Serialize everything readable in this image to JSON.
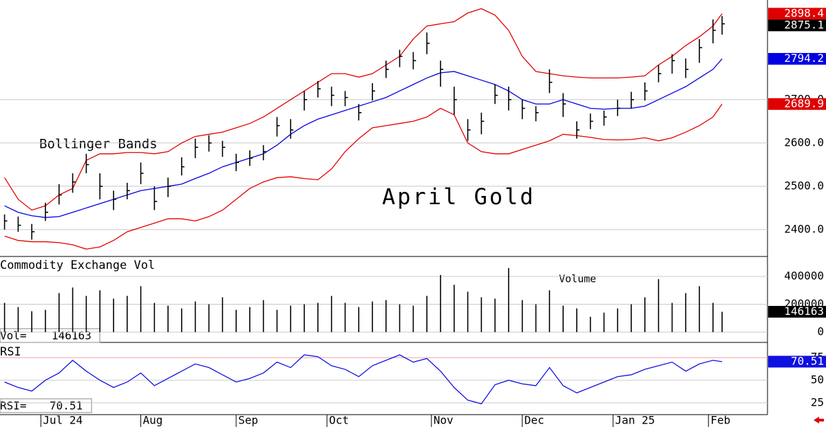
{
  "chart_data": [
    {
      "type": "ohlc",
      "title": "April Gold",
      "annotation": "Bollinger Bands",
      "x": [
        1,
        4,
        7,
        10,
        13,
        16,
        19,
        22,
        25,
        28,
        31,
        34,
        37,
        40,
        43,
        46,
        49,
        52,
        55,
        58,
        61,
        64,
        67,
        70,
        73,
        76,
        79,
        82,
        85,
        88,
        91,
        94,
        97,
        100,
        103,
        106,
        109,
        112,
        115,
        118,
        121,
        124,
        127,
        130,
        133,
        136,
        139,
        142,
        145,
        148,
        151,
        154,
        157,
        159
      ],
      "high": [
        2435,
        2430,
        2413,
        2462,
        2505,
        2530,
        2575,
        2530,
        2490,
        2508,
        2555,
        2500,
        2520,
        2567,
        2610,
        2618,
        2605,
        2575,
        2583,
        2595,
        2660,
        2655,
        2720,
        2743,
        2730,
        2720,
        2690,
        2738,
        2790,
        2815,
        2810,
        2855,
        2790,
        2730,
        2655,
        2670,
        2735,
        2730,
        2700,
        2685,
        2770,
        2715,
        2650,
        2668,
        2675,
        2700,
        2718,
        2740,
        2780,
        2805,
        2795,
        2840,
        2885,
        2893
      ],
      "low": [
        2400,
        2395,
        2377,
        2420,
        2458,
        2485,
        2530,
        2470,
        2445,
        2470,
        2505,
        2445,
        2475,
        2525,
        2565,
        2580,
        2568,
        2535,
        2547,
        2560,
        2615,
        2610,
        2675,
        2705,
        2685,
        2685,
        2652,
        2698,
        2750,
        2775,
        2770,
        2805,
        2730,
        2665,
        2605,
        2620,
        2690,
        2675,
        2655,
        2650,
        2715,
        2660,
        2610,
        2632,
        2640,
        2662,
        2680,
        2698,
        2740,
        2760,
        2750,
        2785,
        2830,
        2850
      ],
      "close": [
        2420,
        2410,
        2395,
        2440,
        2480,
        2510,
        2550,
        2500,
        2470,
        2490,
        2530,
        2465,
        2500,
        2545,
        2590,
        2600,
        2590,
        2555,
        2565,
        2580,
        2640,
        2630,
        2700,
        2725,
        2710,
        2705,
        2670,
        2720,
        2770,
        2800,
        2790,
        2830,
        2770,
        2700,
        2630,
        2650,
        2710,
        2700,
        2680,
        2670,
        2740,
        2690,
        2630,
        2650,
        2660,
        2680,
        2700,
        2720,
        2760,
        2790,
        2770,
        2820,
        2860,
        2875.1
      ],
      "color": "#000000",
      "bands": [
        {
          "color": "#e00000",
          "values": [
            2520,
            2470,
            2445,
            2455,
            2480,
            2495,
            2560,
            2575,
            2575,
            2578,
            2578,
            2575,
            2580,
            2600,
            2615,
            2620,
            2625,
            2635,
            2645,
            2660,
            2680,
            2700,
            2720,
            2740,
            2760,
            2760,
            2752,
            2760,
            2780,
            2800,
            2840,
            2870,
            2875,
            2880,
            2900,
            2910,
            2895,
            2860,
            2800,
            2765,
            2760,
            2755,
            2752,
            2750,
            2750,
            2750,
            2752,
            2755,
            2780,
            2800,
            2825,
            2845,
            2870,
            2898.4
          ]
        },
        {
          "color": "#0000e0",
          "values": [
            2455,
            2440,
            2432,
            2428,
            2430,
            2440,
            2450,
            2460,
            2470,
            2480,
            2490,
            2495,
            2500,
            2505,
            2518,
            2530,
            2545,
            2555,
            2565,
            2575,
            2595,
            2620,
            2640,
            2655,
            2665,
            2675,
            2685,
            2695,
            2705,
            2720,
            2735,
            2750,
            2762,
            2765,
            2755,
            2745,
            2735,
            2720,
            2700,
            2690,
            2690,
            2700,
            2690,
            2680,
            2678,
            2680,
            2680,
            2685,
            2700,
            2715,
            2730,
            2750,
            2770,
            2794.2
          ]
        },
        {
          "color": "#e00000",
          "values": [
            2385,
            2375,
            2372,
            2372,
            2370,
            2365,
            2355,
            2360,
            2375,
            2395,
            2405,
            2415,
            2425,
            2425,
            2420,
            2430,
            2445,
            2470,
            2495,
            2510,
            2520,
            2522,
            2518,
            2515,
            2540,
            2580,
            2610,
            2635,
            2640,
            2645,
            2650,
            2660,
            2680,
            2665,
            2600,
            2580,
            2575,
            2575,
            2585,
            2595,
            2605,
            2620,
            2617,
            2613,
            2608,
            2607,
            2608,
            2612,
            2605,
            2612,
            2625,
            2640,
            2660,
            2689.9
          ]
        }
      ],
      "xlim": [
        0,
        169
      ],
      "ylim": [
        2338,
        2930
      ],
      "yticks": [
        {
          "value": 2400,
          "label": "2400.0"
        },
        {
          "value": 2500,
          "label": "2500.0"
        },
        {
          "value": 2600,
          "label": "2600.0"
        },
        {
          "value": 2700,
          "label": "2700.0"
        }
      ]
    },
    {
      "type": "bar",
      "title": "Commodity Exchange Vol",
      "subtitle": "Volume",
      "readout_label": "Vol=",
      "x": [
        1,
        4,
        7,
        10,
        13,
        16,
        19,
        22,
        25,
        28,
        31,
        34,
        37,
        40,
        43,
        46,
        49,
        52,
        55,
        58,
        61,
        64,
        67,
        70,
        73,
        76,
        79,
        82,
        85,
        88,
        91,
        94,
        97,
        100,
        103,
        106,
        109,
        112,
        115,
        118,
        121,
        124,
        127,
        130,
        133,
        136,
        139,
        142,
        145,
        148,
        151,
        154,
        157,
        159
      ],
      "values": [
        210000,
        180000,
        150000,
        160000,
        280000,
        320000,
        260000,
        300000,
        240000,
        260000,
        330000,
        210000,
        190000,
        170000,
        220000,
        200000,
        250000,
        160000,
        180000,
        230000,
        160000,
        190000,
        200000,
        210000,
        260000,
        210000,
        180000,
        220000,
        230000,
        200000,
        190000,
        260000,
        410000,
        340000,
        290000,
        250000,
        240000,
        460000,
        230000,
        200000,
        300000,
        190000,
        170000,
        110000,
        140000,
        170000,
        200000,
        250000,
        380000,
        210000,
        280000,
        330000,
        210000,
        146163
      ],
      "color": "#000000",
      "xlim": [
        0,
        169
      ],
      "ylim": [
        -69000,
        538000
      ],
      "yticks": [
        0,
        200000,
        400000
      ]
    },
    {
      "type": "line",
      "title": "RSI",
      "readout_label": "RSI=",
      "x": [
        1,
        4,
        7,
        10,
        13,
        16,
        19,
        22,
        25,
        28,
        31,
        34,
        37,
        40,
        43,
        46,
        49,
        52,
        55,
        58,
        61,
        64,
        67,
        70,
        73,
        76,
        79,
        82,
        85,
        88,
        91,
        94,
        97,
        100,
        103,
        106,
        109,
        112,
        115,
        118,
        121,
        124,
        127,
        130,
        133,
        136,
        139,
        142,
        145,
        148,
        151,
        154,
        157,
        159
      ],
      "values": [
        48,
        42,
        38,
        50,
        58,
        72,
        60,
        50,
        42,
        48,
        58,
        44,
        52,
        60,
        68,
        64,
        56,
        48,
        52,
        58,
        70,
        64,
        78,
        76,
        66,
        62,
        54,
        66,
        72,
        78,
        70,
        74,
        60,
        42,
        28,
        24,
        45,
        50,
        46,
        44,
        64,
        44,
        36,
        42,
        48,
        54,
        56,
        62,
        66,
        70,
        60,
        68,
        72,
        70.51
      ],
      "color": "#1010e0",
      "xlim": [
        0,
        169
      ],
      "ylim": [
        12,
        91
      ],
      "yticks": [
        25,
        50,
        75
      ],
      "xticks": [
        {
          "value": 9,
          "label": "Jul 24"
        },
        {
          "value": 31,
          "label": "Aug"
        },
        {
          "value": 52,
          "label": "Sep"
        },
        {
          "value": 72,
          "label": "Oct"
        },
        {
          "value": 95,
          "label": "Nov"
        },
        {
          "value": 115,
          "label": "Dec"
        },
        {
          "value": 135,
          "label": "Jan 25"
        },
        {
          "value": 156,
          "label": "Feb"
        }
      ]
    }
  ]
}
